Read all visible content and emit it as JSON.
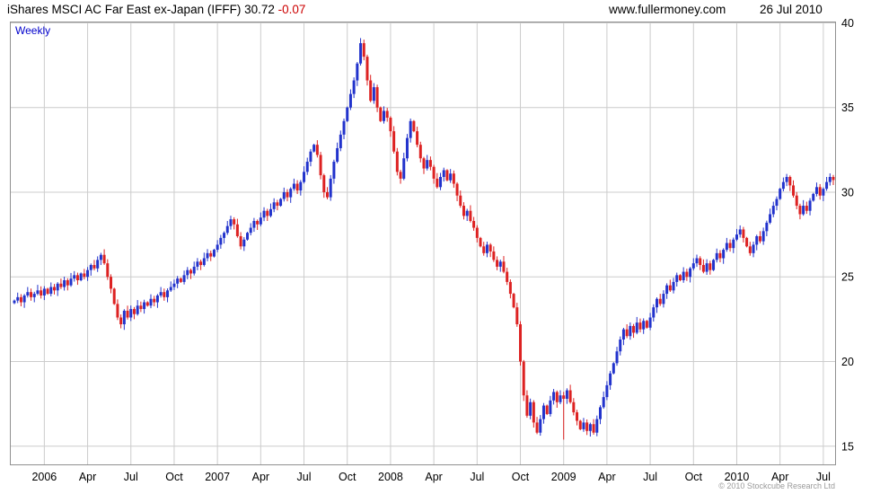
{
  "header": {
    "title": "iShares MSCI AC Far East ex-Japan (IFFF)",
    "price": "30.72",
    "change": "-0.07",
    "site": "www.fullermoney.com",
    "date": "26 Jul 2010"
  },
  "chart_label": "Weekly",
  "footer": {
    "copyright": "© 2010 Stockcube Research Ltd"
  },
  "chart_data": {
    "type": "candlestick",
    "timeframe": "Weekly",
    "title": "iShares MSCI AC Far East ex-Japan (IFFF)",
    "last_price": 30.72,
    "change": -0.07,
    "xlabel": "",
    "ylabel": "",
    "ylim": [
      13.9,
      40.05
    ],
    "y_ticks": [
      15,
      20,
      25,
      30,
      35,
      40
    ],
    "grid": true,
    "up_color": "#2233cc",
    "down_color": "#dd2222",
    "grid_color": "#cccccc",
    "border_color": "#909090",
    "x_ticks": [
      {
        "label": "2006",
        "week": 9
      },
      {
        "label": "Apr",
        "week": 22
      },
      {
        "label": "Jul",
        "week": 35
      },
      {
        "label": "Oct",
        "week": 48
      },
      {
        "label": "2007",
        "week": 61
      },
      {
        "label": "Apr",
        "week": 74
      },
      {
        "label": "Jul",
        "week": 87
      },
      {
        "label": "Oct",
        "week": 100
      },
      {
        "label": "2008",
        "week": 113
      },
      {
        "label": "Apr",
        "week": 126
      },
      {
        "label": "Jul",
        "week": 139
      },
      {
        "label": "Oct",
        "week": 152
      },
      {
        "label": "2009",
        "week": 165
      },
      {
        "label": "Apr",
        "week": 178
      },
      {
        "label": "Jul",
        "week": 191
      },
      {
        "label": "Oct",
        "week": 204
      },
      {
        "label": "2010",
        "week": 217
      },
      {
        "label": "Apr",
        "week": 230
      },
      {
        "label": "Jul",
        "week": 243
      }
    ],
    "deep_wick_weeks": [
      {
        "week": 165,
        "extra": 2.2
      }
    ],
    "weekly_closes": [
      23.6,
      23.8,
      23.5,
      23.9,
      24.1,
      23.8,
      24.0,
      24.2,
      23.9,
      24.3,
      24.0,
      24.4,
      24.2,
      24.6,
      24.4,
      24.8,
      24.5,
      24.9,
      25.1,
      24.8,
      25.2,
      25.0,
      25.4,
      25.7,
      25.5,
      26.0,
      26.3,
      25.8,
      25.0,
      24.3,
      23.4,
      22.6,
      22.2,
      23.0,
      22.6,
      23.1,
      22.8,
      23.3,
      23.1,
      23.5,
      23.3,
      23.7,
      23.5,
      23.9,
      24.1,
      23.8,
      24.2,
      24.4,
      24.6,
      24.9,
      24.7,
      25.1,
      25.4,
      25.2,
      25.6,
      25.9,
      25.7,
      26.1,
      26.4,
      26.2,
      26.6,
      26.9,
      27.3,
      27.6,
      28.0,
      28.4,
      28.1,
      27.4,
      26.8,
      27.2,
      27.6,
      27.9,
      28.3,
      28.1,
      28.5,
      28.9,
      28.6,
      29.0,
      29.4,
      29.2,
      29.6,
      30.0,
      29.7,
      30.2,
      30.5,
      30.1,
      30.6,
      31.2,
      31.8,
      32.4,
      32.8,
      32.2,
      31.0,
      30.0,
      29.7,
      30.8,
      31.8,
      32.6,
      33.4,
      34.2,
      35.0,
      35.8,
      36.6,
      37.6,
      38.8,
      38.0,
      36.6,
      35.4,
      36.2,
      35.0,
      34.2,
      34.8,
      34.4,
      33.6,
      32.4,
      31.2,
      30.8,
      32.0,
      33.2,
      34.2,
      33.6,
      32.8,
      32.0,
      31.4,
      31.9,
      31.5,
      30.8,
      30.3,
      30.9,
      31.3,
      30.7,
      31.1,
      30.5,
      29.8,
      29.2,
      28.6,
      28.9,
      28.3,
      27.9,
      27.3,
      26.8,
      26.4,
      26.9,
      26.5,
      26.0,
      25.6,
      25.9,
      25.3,
      24.7,
      24.0,
      23.2,
      22.2,
      20.0,
      18.0,
      16.8,
      17.6,
      16.4,
      15.8,
      16.6,
      17.4,
      16.9,
      17.7,
      18.2,
      17.6,
      18.0,
      17.8,
      18.3,
      17.6,
      17.0,
      16.5,
      16.0,
      16.4,
      15.9,
      16.3,
      15.8,
      16.6,
      17.3,
      17.9,
      18.6,
      19.3,
      19.9,
      20.6,
      21.3,
      21.9,
      21.5,
      22.1,
      21.7,
      22.3,
      21.9,
      22.4,
      22.0,
      22.6,
      23.2,
      23.7,
      23.4,
      24.0,
      24.5,
      24.2,
      24.7,
      25.1,
      24.8,
      25.3,
      25.0,
      25.5,
      25.8,
      26.1,
      25.7,
      25.3,
      25.8,
      25.4,
      26.0,
      26.4,
      26.1,
      26.6,
      27.0,
      26.7,
      27.2,
      27.5,
      27.8,
      27.3,
      26.8,
      26.4,
      26.9,
      27.4,
      27.1,
      27.7,
      28.2,
      28.7,
      29.2,
      29.6,
      30.2,
      30.6,
      30.9,
      30.4,
      29.8,
      29.2,
      28.7,
      29.2,
      28.9,
      29.5,
      29.9,
      30.3,
      29.8,
      30.2,
      30.6,
      30.9,
      30.72
    ]
  }
}
